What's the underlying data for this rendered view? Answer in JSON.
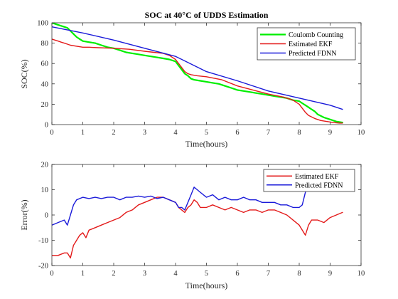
{
  "chart_data": [
    {
      "type": "line",
      "title": "SOC at 40°C of UDDS Estimation",
      "xlabel": "Time(hours)",
      "ylabel": "SOC(%)",
      "xlim": [
        0,
        10
      ],
      "ylim": [
        0,
        100
      ],
      "xticks": [
        0,
        1,
        2,
        3,
        4,
        5,
        6,
        7,
        8,
        9,
        10
      ],
      "yticks": [
        0,
        20,
        40,
        60,
        80,
        100
      ],
      "grid": false,
      "legend_position": "top-right",
      "series": [
        {
          "name": "Coulomb Counting",
          "color": "#00ee00",
          "width": 2.2,
          "x": [
            0,
            0.1,
            0.2,
            0.3,
            0.4,
            0.5,
            0.6,
            0.7,
            0.8,
            0.9,
            1.0,
            1.2,
            1.4,
            1.6,
            1.8,
            2.0,
            2.2,
            2.4,
            2.6,
            2.8,
            3.0,
            3.2,
            3.4,
            3.6,
            3.8,
            4.0,
            4.1,
            4.2,
            4.3,
            4.4,
            4.5,
            4.6,
            4.8,
            5.0,
            5.2,
            5.4,
            5.6,
            5.8,
            6.0,
            6.2,
            6.4,
            6.6,
            6.8,
            7.0,
            7.2,
            7.4,
            7.6,
            7.8,
            8.0,
            8.1,
            8.2,
            8.3,
            8.4,
            8.5,
            8.6,
            8.8,
            9.0,
            9.2,
            9.4
          ],
          "y": [
            100,
            99,
            98,
            97,
            96,
            95,
            92,
            89,
            86,
            84,
            82,
            81,
            80,
            78,
            76,
            75,
            73,
            71,
            70,
            69,
            68,
            67,
            66,
            65,
            64,
            62,
            58,
            54,
            50,
            48,
            45,
            44,
            43,
            42,
            41,
            40,
            38,
            36,
            34,
            33,
            32,
            31,
            30,
            29,
            28,
            27,
            26,
            24,
            23,
            21,
            19,
            17,
            15,
            13,
            10,
            7,
            5,
            3,
            2
          ]
        },
        {
          "name": "Estimated EKF",
          "color": "#e31a1a",
          "width": 1.4,
          "x": [
            0,
            0.1,
            0.2,
            0.3,
            0.4,
            0.5,
            0.6,
            0.8,
            1.0,
            1.2,
            1.5,
            2.0,
            2.5,
            3.0,
            3.3,
            3.6,
            3.8,
            4.0,
            4.1,
            4.2,
            4.3,
            4.4,
            4.5,
            4.7,
            5.0,
            5.5,
            6.0,
            6.5,
            7.0,
            7.5,
            7.8,
            8.0,
            8.1,
            8.2,
            8.3,
            8.5,
            8.7,
            8.9,
            9.1,
            9.3,
            9.4
          ],
          "y": [
            84,
            83,
            82,
            81,
            80,
            79,
            78,
            77,
            76,
            76,
            75.5,
            75,
            74,
            72,
            71,
            70,
            68,
            64,
            60,
            56,
            52,
            50,
            49,
            48,
            47,
            44,
            38,
            34,
            30,
            27,
            24,
            20,
            16,
            12,
            9,
            6,
            4,
            3,
            2,
            1.5,
            1.5
          ]
        },
        {
          "name": "Predicted FDNN",
          "color": "#1a1ad9",
          "width": 1.4,
          "x": [
            0,
            1,
            2,
            3,
            4,
            5,
            6,
            7,
            8,
            9,
            9.4
          ],
          "y": [
            96,
            90,
            83,
            75,
            67,
            52,
            43,
            33,
            26,
            19,
            15
          ]
        }
      ]
    },
    {
      "type": "line",
      "title": "",
      "xlabel": "Time(hours)",
      "ylabel": "Error(%)",
      "xlim": [
        0,
        10
      ],
      "ylim": [
        -20,
        20
      ],
      "xticks": [
        0,
        1,
        2,
        3,
        4,
        5,
        6,
        7,
        8,
        9,
        10
      ],
      "yticks": [
        -20,
        -10,
        0,
        10,
        20
      ],
      "grid": false,
      "legend_position": "top-right",
      "series": [
        {
          "name": "Estimated EKF",
          "color": "#e31a1a",
          "width": 1.4,
          "x": [
            0,
            0.2,
            0.4,
            0.5,
            0.6,
            0.7,
            0.8,
            0.9,
            1.0,
            1.1,
            1.2,
            1.4,
            1.6,
            1.8,
            2.0,
            2.2,
            2.4,
            2.6,
            2.8,
            3.0,
            3.2,
            3.4,
            3.6,
            3.8,
            4.0,
            4.1,
            4.2,
            4.3,
            4.4,
            4.5,
            4.6,
            4.7,
            4.8,
            5.0,
            5.2,
            5.4,
            5.6,
            5.8,
            6.0,
            6.2,
            6.4,
            6.6,
            6.8,
            7.0,
            7.2,
            7.4,
            7.6,
            7.8,
            8.0,
            8.1,
            8.2,
            8.3,
            8.4,
            8.6,
            8.8,
            9.0,
            9.2,
            9.4
          ],
          "y": [
            -16,
            -16,
            -15,
            -15,
            -17,
            -12,
            -10,
            -8,
            -7,
            -9,
            -6,
            -5,
            -4,
            -3,
            -2,
            -1,
            1,
            2,
            4,
            5,
            6,
            7,
            7,
            6,
            5,
            3,
            2,
            1,
            3,
            4,
            6,
            5,
            3,
            3,
            4,
            3,
            2,
            3,
            2,
            1,
            2,
            2,
            1,
            2,
            2,
            1,
            0,
            -2,
            -4,
            -6,
            -8,
            -4,
            -2,
            -2,
            -3,
            -1,
            0,
            1
          ]
        },
        {
          "name": "Predicted FDNN",
          "color": "#1a1ad9",
          "width": 1.4,
          "x": [
            0,
            0.2,
            0.4,
            0.5,
            0.6,
            0.7,
            0.8,
            1.0,
            1.2,
            1.4,
            1.6,
            1.8,
            2.0,
            2.2,
            2.4,
            2.6,
            2.8,
            3.0,
            3.2,
            3.4,
            3.6,
            3.8,
            4.0,
            4.1,
            4.2,
            4.3,
            4.4,
            4.5,
            4.6,
            4.7,
            4.8,
            5.0,
            5.2,
            5.4,
            5.6,
            5.8,
            6.0,
            6.2,
            6.4,
            6.6,
            6.8,
            7.0,
            7.2,
            7.4,
            7.6,
            7.8,
            8.0,
            8.1,
            8.2
          ],
          "y": [
            -4,
            -3,
            -2,
            -4,
            0,
            4,
            6,
            7,
            6.5,
            7,
            6.5,
            7,
            7,
            6,
            7,
            7,
            7.5,
            7,
            7.5,
            6.5,
            7,
            6,
            5,
            3,
            3,
            2,
            5,
            8,
            11,
            10,
            9,
            7,
            8,
            6,
            7,
            6,
            6,
            7,
            6,
            6,
            5,
            5,
            5,
            4,
            4,
            3,
            3,
            4,
            9
          ]
        }
      ]
    }
  ]
}
